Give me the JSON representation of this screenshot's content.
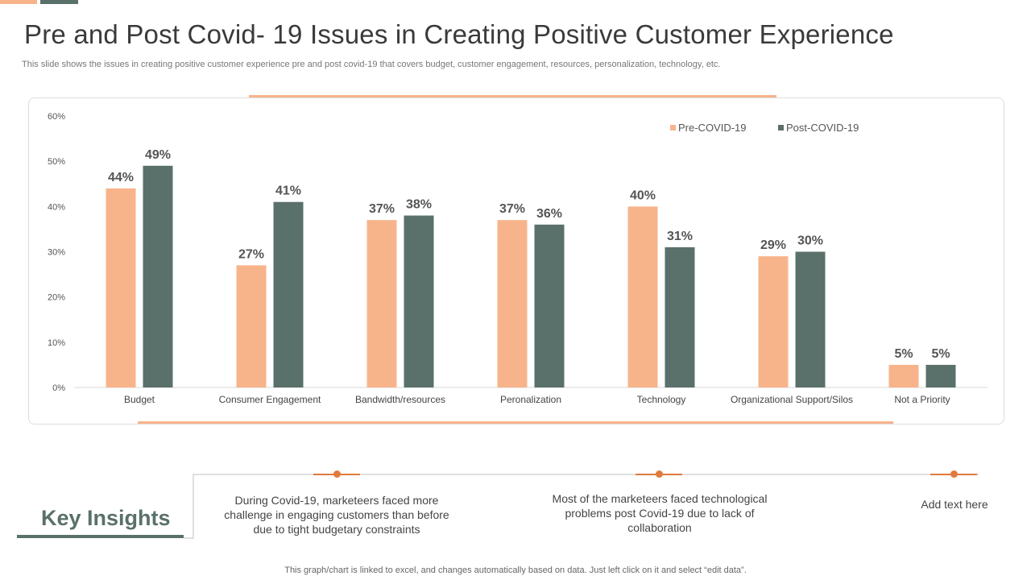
{
  "title": "Pre and Post Covid- 19 Issues in Creating Positive Customer Experience",
  "subtitle": "This slide shows the issues in creating positive customer experience pre and post covid-19 that covers budget, customer engagement, resources, personalization, technology, etc.",
  "colors": {
    "pre": "#f7b48b",
    "post": "#5a706b",
    "accent": "#e07a3d"
  },
  "chart_data": {
    "type": "bar",
    "title": "",
    "xlabel": "",
    "ylabel": "",
    "categories": [
      "Budget",
      "Consumer Engagement",
      "Bandwidth/resources",
      "Peronalization",
      "Technology",
      "Organizational Support/Silos",
      "Not a Priority"
    ],
    "series": [
      {
        "name": "Pre-COVID-19",
        "values": [
          44,
          27,
          37,
          37,
          40,
          29,
          5
        ]
      },
      {
        "name": "Post-COVID-19",
        "values": [
          49,
          41,
          38,
          36,
          31,
          30,
          5
        ]
      }
    ],
    "ylim": [
      0,
      60
    ],
    "yticks": [
      0,
      10,
      20,
      30,
      40,
      50,
      60
    ],
    "value_suffix": "%",
    "legend_position": "top-right",
    "grid": false
  },
  "insights": {
    "heading": "Key Insights",
    "items": [
      "During Covid-19, marketeers faced more challenge in engaging customers than before due to tight budgetary constraints",
      "Most of the marketeers faced technological problems post Covid-19 due to lack of collaboration",
      "Add text here"
    ]
  },
  "footer": "This graph/chart is linked to excel, and changes automatically based on data. Just left click on it and select “edit data”."
}
